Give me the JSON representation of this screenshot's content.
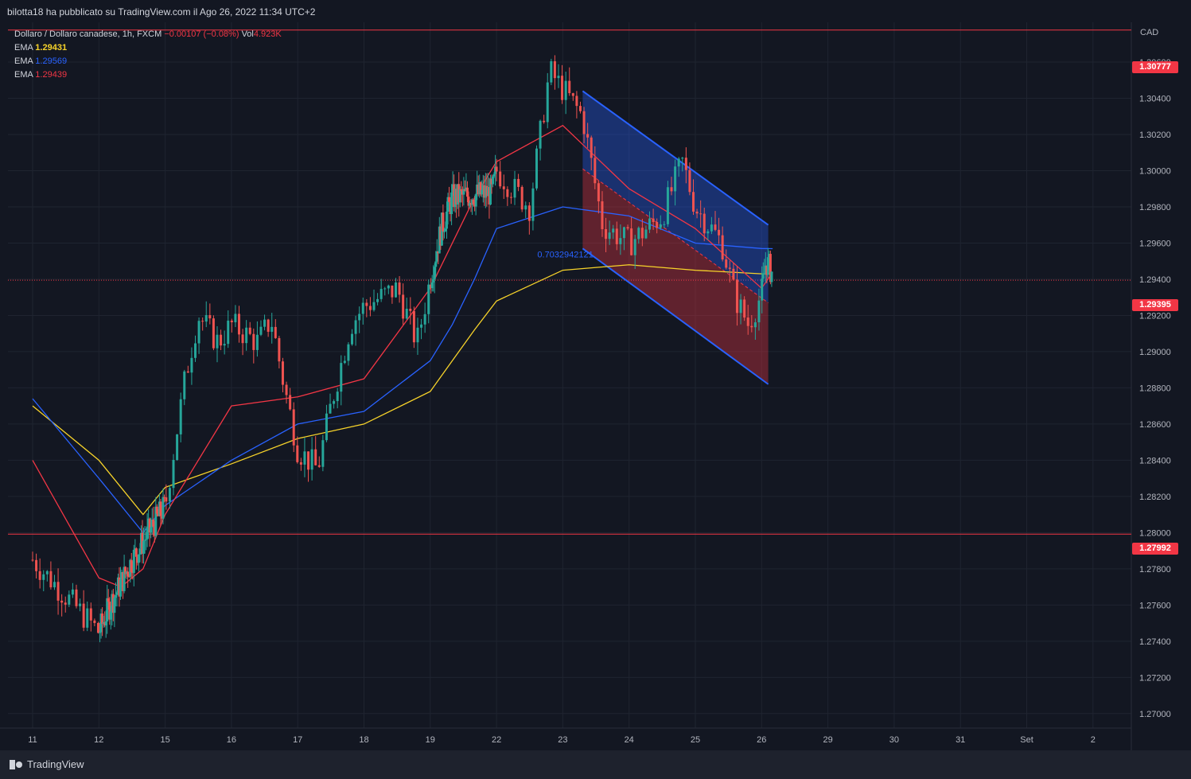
{
  "header": {
    "publisher_line": "bilotta18 ha pubblicato su TradingView.com il Ago 26, 2022 11:34 UTC+2"
  },
  "legend": {
    "symbol": "Dollaro / Dollaro canadese, 1h, FXCM",
    "change": "−0.00107 (−0.08%)",
    "vol_label": "Vol",
    "vol_value": "4.923K",
    "ema1_label": "EMA",
    "ema1_value": "1.29431",
    "ema1_color": "#f7d32a",
    "ema2_label": "EMA",
    "ema2_value": "1.29569",
    "ema2_color": "#2962ff",
    "ema3_label": "EMA",
    "ema3_value": "1.29439",
    "ema3_color": "#f23645"
  },
  "price_tags": {
    "upper": "1.30777",
    "current": "1.29395",
    "lower": "1.27992"
  },
  "channel_label": "0.7032942121",
  "footer": {
    "brand": "TradingView"
  },
  "colors": {
    "bg": "#131722",
    "up": "#26a69a",
    "down": "#ef5350",
    "accent_red": "#f23645",
    "channel_blue": "#2962ff"
  },
  "chart_data": {
    "type": "candlestick",
    "y_axis_unit": "CAD",
    "ylim": [
      1.2692,
      1.3082
    ],
    "y_ticks": [
      1.27,
      1.272,
      1.274,
      1.276,
      1.278,
      1.28,
      1.282,
      1.284,
      1.286,
      1.288,
      1.29,
      1.292,
      1.294,
      1.296,
      1.298,
      1.3,
      1.302,
      1.304,
      1.306
    ],
    "x_ticks": [
      "11",
      "12",
      "15",
      "16",
      "17",
      "18",
      "19",
      "22",
      "23",
      "24",
      "25",
      "26",
      "29",
      "30",
      "31",
      "Set",
      "2"
    ],
    "horizontal_lines": [
      {
        "value": 1.30777,
        "color": "#f23645",
        "style": "solid"
      },
      {
        "value": 1.27992,
        "color": "#f23645",
        "style": "solid"
      },
      {
        "value": 1.29395,
        "color": "#f23645",
        "style": "dotted"
      }
    ],
    "price_path": [
      [
        11,
        1.2785
      ],
      [
        11.5,
        1.2765
      ],
      [
        12,
        1.2745
      ],
      [
        12.5,
        1.276
      ],
      [
        13,
        1.2772
      ],
      [
        13.5,
        1.2785
      ],
      [
        14,
        1.2795
      ],
      [
        15,
        1.2815
      ],
      [
        15.3,
        1.2885
      ],
      [
        15.5,
        1.292
      ],
      [
        15.8,
        1.2905
      ],
      [
        16,
        1.2915
      ],
      [
        16.4,
        1.2905
      ],
      [
        16.6,
        1.2918
      ],
      [
        16.8,
        1.288
      ],
      [
        17,
        1.2846
      ],
      [
        17.3,
        1.2835
      ],
      [
        17.5,
        1.287
      ],
      [
        17.8,
        1.2915
      ],
      [
        18,
        1.2925
      ],
      [
        18.5,
        1.2935
      ],
      [
        18.8,
        1.2905
      ],
      [
        19,
        1.294
      ],
      [
        19.5,
        1.2968
      ],
      [
        20,
        1.2985
      ],
      [
        21.8,
        1.2988
      ],
      [
        22,
        1.3
      ],
      [
        22.5,
        1.298
      ],
      [
        22.8,
        1.3055
      ],
      [
        23,
        1.3045
      ],
      [
        23.3,
        1.303
      ],
      [
        23.6,
        1.297
      ],
      [
        24,
        1.296
      ],
      [
        24.5,
        1.2975
      ],
      [
        24.8,
        1.3005
      ],
      [
        25,
        1.298
      ],
      [
        25.4,
        1.296
      ],
      [
        25.6,
        1.293
      ],
      [
        25.8,
        1.2915
      ],
      [
        26,
        1.2932
      ],
      [
        26.2,
        1.295
      ],
      [
        26.5,
        1.2943
      ]
    ],
    "ema_series": [
      {
        "values": [
          [
            11,
            1.287
          ],
          [
            12,
            1.284
          ],
          [
            14,
            1.281
          ],
          [
            15,
            1.2825
          ],
          [
            16,
            1.2838
          ],
          [
            17,
            1.2852
          ],
          [
            18,
            1.286
          ],
          [
            19,
            1.2878
          ],
          [
            20,
            1.2895
          ],
          [
            21,
            1.2912
          ],
          [
            22,
            1.2928
          ],
          [
            23,
            1.2945
          ],
          [
            24,
            1.2948
          ],
          [
            25,
            1.2945
          ],
          [
            26,
            1.2943
          ],
          [
            26.5,
            1.29431
          ]
        ]
      },
      {
        "values": [
          [
            11,
            1.2874
          ],
          [
            12,
            1.283
          ],
          [
            14,
            1.28
          ],
          [
            15,
            1.2815
          ],
          [
            16,
            1.284
          ],
          [
            17,
            1.286
          ],
          [
            18,
            1.2867
          ],
          [
            19,
            1.2895
          ],
          [
            20,
            1.2915
          ],
          [
            21,
            1.294
          ],
          [
            22,
            1.2968
          ],
          [
            23,
            1.298
          ],
          [
            24,
            1.2975
          ],
          [
            25,
            1.296
          ],
          [
            26,
            1.2957
          ],
          [
            26.5,
            1.29569
          ]
        ]
      },
      {
        "values": [
          [
            11,
            1.284
          ],
          [
            12,
            1.2775
          ],
          [
            13,
            1.277
          ],
          [
            14,
            1.278
          ],
          [
            15,
            1.281
          ],
          [
            16,
            1.287
          ],
          [
            17,
            1.2875
          ],
          [
            18,
            1.2885
          ],
          [
            19,
            1.2935
          ],
          [
            20,
            1.296
          ],
          [
            21,
            1.2985
          ],
          [
            22,
            1.3005
          ],
          [
            23,
            1.3025
          ],
          [
            24,
            1.299
          ],
          [
            25,
            1.2968
          ],
          [
            26,
            1.2935
          ],
          [
            26.5,
            1.29439
          ]
        ]
      }
    ],
    "regression_channel": {
      "x_start": 23.3,
      "x_end": 26.3,
      "upper_start": 1.3044,
      "upper_end": 1.297,
      "mid_start": 1.3001,
      "mid_end": 1.2927,
      "lower_start": 1.2957,
      "lower_end": 1.2882
    }
  }
}
